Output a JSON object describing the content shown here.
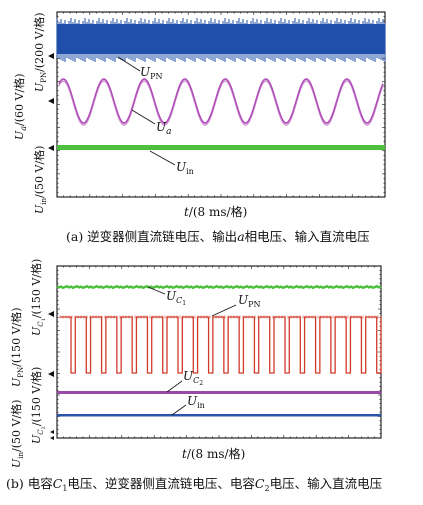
{
  "figure_a": {
    "caption_prefix": "(a) 逆变器侧直流链电压、输出",
    "caption_var": "a",
    "caption_suffix": "相电压、输入直流电压",
    "xlabel_var": "t",
    "xlabel_unit": "/(8 ms/格)"
  },
  "figure_b": {
    "caption_prefix": "(b) 电容",
    "caption_c1": "C",
    "caption_c1_sub": "1",
    "caption_mid": "电压、逆变器侧直流链电压、电容",
    "caption_c2": "C",
    "caption_c2_sub": "2",
    "caption_suffix": "电压、输入直流电压",
    "xlabel_var": "t",
    "xlabel_unit": "/(8 ms/格)"
  },
  "colors": {
    "upn_a": "#1f4fa8",
    "ua": "#b04fb8",
    "uin_a": "#4cc03c",
    "uc1": "#4cc03c",
    "upn_b": "#d23a2a",
    "uc2": "#9a4aa8",
    "uin_b": "#2a54a8"
  },
  "chart_data": [
    {
      "type": "line",
      "panel": "a",
      "xlabel": "t/(8 ms/格)",
      "x_range_div": [
        0,
        10
      ],
      "grid": false,
      "series": [
        {
          "name": "U_PN",
          "label_main": "U",
          "label_sub": "PN",
          "scale": "200 V/格",
          "shape": "dc_with_ripple",
          "level_div": 0.75
        },
        {
          "name": "U_a",
          "label_main": "U",
          "label_sub": "a",
          "scale": "60 V/格",
          "shape": "sine",
          "cycles": 8,
          "amplitude_div": 0.7
        },
        {
          "name": "U_in",
          "label_main": "U",
          "label_sub": "in",
          "scale": "50 V/格",
          "shape": "dc",
          "level_div": 0.0
        }
      ],
      "y_labels": [
        {
          "main": "U",
          "sub": "in",
          "unit": "/(50 V/格)"
        },
        {
          "main": "U",
          "sub": "a",
          "unit": "/(60 V/格)"
        },
        {
          "main": "U",
          "sub": "PN",
          "unit": "/(200 V/格)"
        }
      ]
    },
    {
      "type": "line",
      "panel": "b",
      "xlabel": "t/(8 ms/格)",
      "x_range_div": [
        0,
        10
      ],
      "grid": false,
      "series": [
        {
          "name": "U_C1",
          "label_main": "U",
          "label_sub": "C",
          "label_subsub": "1",
          "scale": "150 V/格",
          "shape": "dc"
        },
        {
          "name": "U_PN",
          "label_main": "U",
          "label_sub": "PN",
          "scale": "150 V/格",
          "shape": "pulse",
          "pulses": 21
        },
        {
          "name": "U_C2",
          "label_main": "U",
          "label_sub": "C",
          "label_subsub": "2",
          "scale": "150 V/格",
          "shape": "dc"
        },
        {
          "name": "U_in",
          "label_main": "U",
          "label_sub": "in",
          "scale": "50 V/格",
          "shape": "dc"
        }
      ],
      "y_labels": [
        {
          "main": "U",
          "sub": "in",
          "unit": "/(50 V/格)"
        },
        {
          "main": "U",
          "sub": "C",
          "subsub": "2",
          "unit": "/(150 V/格)"
        },
        {
          "main": "U",
          "sub": "PN",
          "unit": "/(150 V/格)"
        },
        {
          "main": "U",
          "sub": "C",
          "subsub": "1",
          "unit": "/(150 V/格)"
        }
      ]
    }
  ]
}
